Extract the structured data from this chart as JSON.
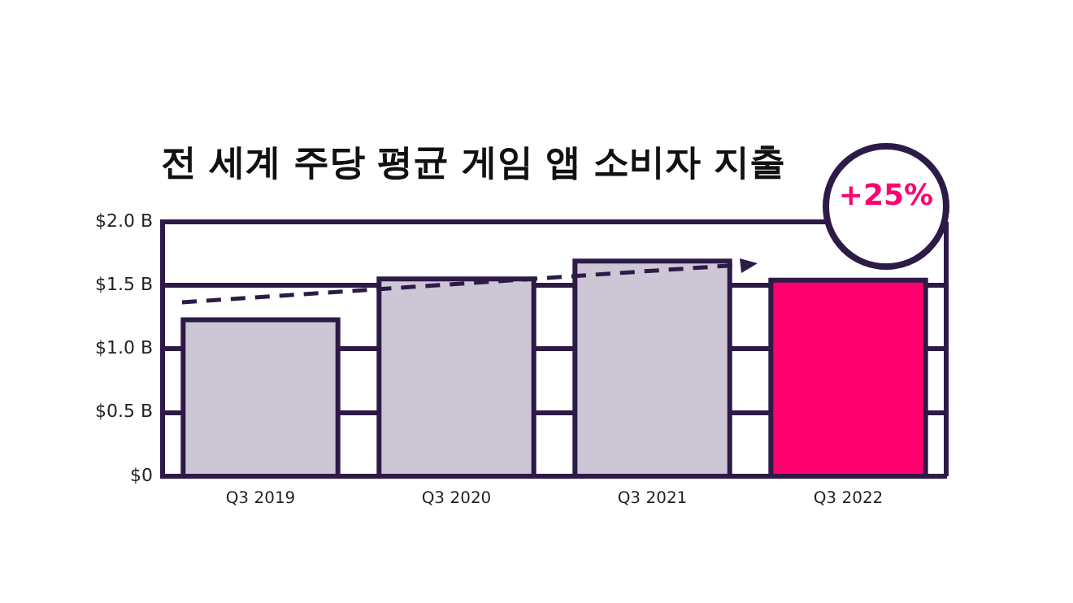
{
  "chart_data": {
    "type": "bar",
    "title": "전 세계 주당 평균 게임 앱 소비자 지출",
    "categories": [
      "Q3 2019",
      "Q3 2020",
      "Q3 2021",
      "Q3 2022"
    ],
    "values": [
      1.23,
      1.55,
      1.69,
      1.54
    ],
    "colors": [
      "#cdc6d4",
      "#cdc6d4",
      "#cdc6d4",
      "#ff006e"
    ],
    "ylim": [
      0,
      2
    ],
    "yticks": [
      {
        "value": 0,
        "label": "$0"
      },
      {
        "value": 0.5,
        "label": "$0.5 B"
      },
      {
        "value": 1,
        "label": "$1.0 B"
      },
      {
        "value": 1.5,
        "label": "$1.5 B"
      },
      {
        "value": 2,
        "label": "$2.0 B"
      }
    ],
    "grid": "y",
    "legend": false,
    "annotations": [
      "+25%"
    ]
  }
}
